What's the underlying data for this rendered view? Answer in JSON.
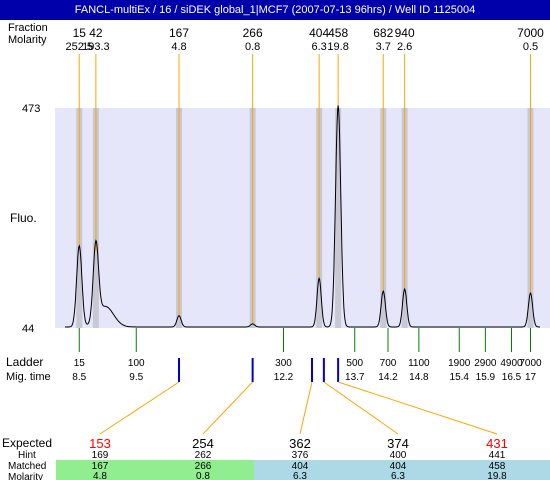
{
  "window": {
    "title": "FANCL-multiEx / 16 / siDEK global_1|MCF7 (2007-07-13 96hrs) / Well ID 1125004"
  },
  "chart_data": {
    "type": "line",
    "title": "",
    "ylabel": "Fluo.",
    "ylim": [
      44,
      473
    ],
    "xlim": [
      0,
      100
    ],
    "y_ticks": [
      473,
      44
    ],
    "row_labels": {
      "fraction": "Fraction",
      "molarity": "Molarity",
      "ladder": "Ladder",
      "mig_time": "Mig. time",
      "expected": "Expected",
      "hint": "Hint",
      "matched": "Matched",
      "molarity_bottom": "Molarity"
    },
    "peaks": [
      {
        "fraction": "15",
        "molarity": "252.5",
        "x": 3.0,
        "height": 158
      },
      {
        "fraction": "42",
        "molarity": "193.3",
        "x": 6.5,
        "height": 148
      },
      {
        "fraction": "167",
        "molarity": "4.8",
        "x": 24.0,
        "height": 22
      },
      {
        "fraction": "266",
        "molarity": "0.8",
        "x": 39.5,
        "height": 6
      },
      {
        "fraction": "404",
        "molarity": "6.3",
        "x": 53.5,
        "height": 95
      },
      {
        "fraction": "458",
        "molarity": "19.8",
        "x": 57.5,
        "height": 432
      },
      {
        "fraction": "682",
        "molarity": "3.7",
        "x": 67.0,
        "height": 70
      },
      {
        "fraction": "940",
        "molarity": "2.6",
        "x": 71.5,
        "height": 74
      },
      {
        "fraction": "7000",
        "molarity": "0.5",
        "x": 98.0,
        "height": 66
      }
    ],
    "ladder": [
      {
        "size": "15",
        "time": "8.5",
        "x": 3.0
      },
      {
        "size": "100",
        "time": "9.5",
        "x": 15.0
      },
      {
        "size": "300",
        "time": "12.2",
        "x": 46.0
      },
      {
        "size": "500",
        "time": "13.7",
        "x": 61.0
      },
      {
        "size": "700",
        "time": "14.2",
        "x": 68.0
      },
      {
        "size": "1100",
        "time": "14.8",
        "x": 74.5
      },
      {
        "size": "1900",
        "time": "15.4",
        "x": 83.0
      },
      {
        "size": "2900",
        "time": "15.9",
        "x": 88.5
      },
      {
        "size": "4900",
        "time": "16.5",
        "x": 94.0
      },
      {
        "size": "7000",
        "time": "17",
        "x": 98.0
      }
    ],
    "expected_markers": [
      24.0,
      39.5,
      52.0,
      54.5,
      57.5
    ],
    "expected": [
      {
        "expected": "153",
        "hint": "169",
        "matched": "167",
        "molarity": "4.8",
        "highlight": true,
        "bg": "#90ee90"
      },
      {
        "expected": "254",
        "hint": "262",
        "matched": "266",
        "molarity": "0.8",
        "highlight": false,
        "bg": "#90ee90"
      },
      {
        "expected": "362",
        "hint": "376",
        "matched": "404",
        "molarity": "6.3",
        "highlight": false,
        "bg": "#add8e6"
      },
      {
        "expected": "374",
        "hint": "400",
        "matched": "404",
        "molarity": "6.3",
        "highlight": false,
        "bg": "#add8e6"
      },
      {
        "expected": "431",
        "hint": "441",
        "matched": "458",
        "molarity": "19.8",
        "highlight": true,
        "bg": "#add8e6"
      }
    ],
    "colors": {
      "title_bg": "#0000aa",
      "plot_bg": "#e6e6fa",
      "peak_band": "#c8c8d4",
      "fraction_line": "#ffa500",
      "ladder_line": "#008000",
      "marker": "#0000cc",
      "highlight": "#ff0000"
    }
  }
}
